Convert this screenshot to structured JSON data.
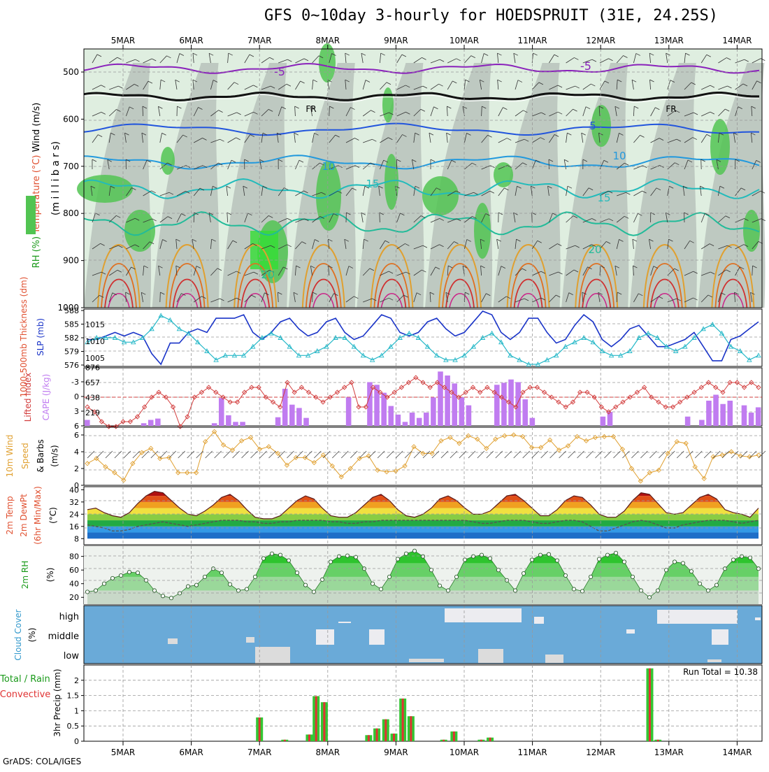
{
  "title": "GFS 0~10day 3-hourly for HOEDSPRUIT (31E, 24.25S)",
  "credit": "GrADS: COLA/IGES",
  "colors": {
    "rh_green": "#52c452",
    "rh_light": "#dfeee0",
    "rh_gray": "#b9c2bb",
    "slp_line": "#1a34c8",
    "thickness_line": "#25b8c8",
    "cape_bar": "#c07cf0",
    "lifted_line": "#d23c3c",
    "wind_line": "#e0a030",
    "cloud_bg": "#6aaad8",
    "cloud_fill": "#ececf0",
    "precip_total": "#33c633",
    "precip_conv": "#e03333"
  },
  "chart_data": [
    {
      "type": "area",
      "panel": "upper_air_cross_section",
      "days": [
        "5MAR",
        "6MAR",
        "7MAR",
        "8MAR",
        "9MAR",
        "10MAR",
        "11MAR",
        "12MAR",
        "13MAR",
        "14MAR"
      ],
      "ylabel": "(m i l l i b a r s)",
      "yticks": [
        "500",
        "600",
        "700",
        "800",
        "900",
        "1000"
      ],
      "ylim": [
        1000,
        450
      ],
      "legend": [
        "Wind (m/s)",
        "Temperature (°C)",
        "RH (%)"
      ],
      "isotherm_labels": [
        "-5",
        "-5",
        "FR",
        "FR",
        "5",
        "10",
        "10",
        "15",
        "15",
        "20",
        "20"
      ]
    },
    {
      "type": "line",
      "panel": "thickness_slp",
      "ylabel_left": "1000-500mb Thickness (dm)",
      "ylabel_right": "SLP (mb)",
      "yticks_left": [
        "576",
        "579",
        "582",
        "585",
        "588"
      ],
      "yticks_right": [
        "1005",
        "1010",
        "1015"
      ],
      "series": [
        {
          "name": "SLP",
          "values": [
            1010,
            1010,
            1011,
            1012,
            1011,
            1012,
            1011,
            1006,
            1003,
            1009,
            1009,
            1012,
            1013,
            1012,
            1016,
            1016,
            1016,
            1017,
            1012,
            1010,
            1012,
            1015,
            1016,
            1013,
            1011,
            1012,
            1015,
            1016,
            1012,
            1010,
            1011,
            1014,
            1017,
            1016,
            1012,
            1011,
            1012,
            1015,
            1016,
            1013,
            1011,
            1012,
            1015,
            1018,
            1017,
            1012,
            1010,
            1012,
            1016,
            1016,
            1012,
            1009,
            1010,
            1014,
            1017,
            1015,
            1010,
            1008,
            1010,
            1013,
            1014,
            1011,
            1008,
            1008,
            1009,
            1010,
            1012,
            1008,
            1004,
            1004,
            1010,
            1011,
            1013,
            1015
          ]
        },
        {
          "name": "Thickness",
          "values": [
            581,
            582,
            582,
            582,
            581,
            581,
            582,
            584,
            587,
            586,
            584,
            583,
            581,
            579,
            577,
            578,
            578,
            578,
            580,
            582,
            583,
            582,
            580,
            578,
            578,
            579,
            580,
            582,
            582,
            580,
            578,
            577,
            578,
            580,
            582,
            583,
            582,
            580,
            578,
            577,
            577,
            578,
            580,
            582,
            583,
            581,
            578,
            577,
            576,
            576,
            577,
            578,
            580,
            581,
            582,
            581,
            579,
            578,
            578,
            579,
            582,
            583,
            582,
            580,
            579,
            580,
            582,
            584,
            585,
            583,
            580,
            579,
            577,
            578
          ]
        }
      ]
    },
    {
      "type": "bar",
      "panel": "cape_lifted_index",
      "ylabel_left": "Lifted Index",
      "ylabel_right": "CAPE (J/kg)",
      "yticks_left": [
        "-3",
        "0",
        "3",
        "6"
      ],
      "yticks_right": [
        "219",
        "438",
        "657",
        "876"
      ],
      "series": [
        {
          "name": "CAPE",
          "values": [
            90,
            0,
            0,
            0,
            0,
            0,
            0,
            0,
            40,
            90,
            110,
            0,
            0,
            0,
            0,
            0,
            0,
            0,
            40,
            420,
            160,
            60,
            60,
            0,
            0,
            0,
            0,
            130,
            560,
            320,
            270,
            120,
            0,
            0,
            0,
            0,
            0,
            430,
            0,
            0,
            660,
            620,
            500,
            300,
            170,
            60,
            200,
            120,
            200,
            430,
            820,
            760,
            640,
            430,
            310,
            0,
            0,
            0,
            620,
            650,
            700,
            660,
            400,
            120,
            0,
            0,
            0,
            0,
            0,
            0,
            0,
            0,
            0,
            140,
            210,
            0,
            0,
            0,
            0,
            0,
            0,
            0,
            0,
            0,
            0,
            140,
            0,
            90,
            380,
            470,
            330,
            380,
            0,
            310,
            200,
            280
          ]
        },
        {
          "name": "Lifted Index",
          "values": [
            2,
            3,
            5,
            6,
            6,
            5,
            5,
            4,
            2,
            0,
            -1,
            0,
            2,
            6,
            4,
            0,
            -1,
            -2,
            -1,
            0,
            1,
            1,
            -1,
            -2,
            -2,
            0,
            1,
            2,
            -3,
            -1,
            -2,
            -1,
            0,
            1,
            0,
            -1,
            -2,
            -3,
            2,
            2,
            -2,
            -1,
            0,
            -1,
            -2,
            -3,
            -4,
            -3,
            -2,
            -3,
            -2,
            -1,
            0,
            -1,
            -2,
            -1,
            -2,
            -1,
            0,
            1,
            2,
            -1,
            -2,
            -2,
            -1,
            0,
            1,
            2,
            1,
            -1,
            -1,
            0,
            2,
            3,
            2,
            1,
            0,
            -1,
            -2,
            0,
            1,
            2,
            2,
            1,
            0,
            -1,
            -2,
            -3,
            -2,
            -1,
            -3,
            -3,
            -2,
            -3,
            -2
          ]
        }
      ]
    },
    {
      "type": "line",
      "panel": "wind_10m",
      "ylabel": "10m Wind Speed & Barbs (m/s)",
      "yticks": [
        "0",
        "2",
        "4",
        "6"
      ],
      "series": [
        {
          "name": "Wind Speed",
          "values": [
            2.6,
            3.2,
            2.2,
            1.5,
            0.6,
            2.6,
            3.9,
            4.4,
            3.2,
            3.3,
            1.5,
            1.5,
            1.5,
            5.2,
            6.4,
            4.8,
            4.2,
            5.3,
            5.7,
            4.3,
            4.6,
            3.8,
            2.4,
            3.3,
            3.3,
            2.7,
            3.6,
            2.3,
            1.0,
            2.0,
            3.2,
            3.5,
            1.8,
            1.6,
            1.7,
            2.3,
            4.6,
            3.8,
            3.8,
            5.3,
            5.7,
            5.0,
            5.9,
            5.5,
            4.4,
            5.5,
            5.9,
            6.0,
            5.8,
            4.5,
            4.5,
            5.4,
            4.2,
            4.7,
            5.8,
            5.3,
            5.7,
            5.8,
            5.8,
            4.3,
            2.0,
            0.5,
            1.5,
            1.8,
            3.8,
            5.2,
            5.0,
            2.2,
            0.8,
            3.4,
            3.6,
            4.0,
            3.5,
            3.4,
            3.6
          ]
        }
      ]
    },
    {
      "type": "area",
      "panel": "temp_2m",
      "ylabel": "2m Temp 2m DewPt (6hr Min/Max) (°C)",
      "yticks": [
        "8",
        "16",
        "24",
        "32",
        "40"
      ],
      "series": [
        {
          "name": "2m Temp",
          "values": [
            27,
            28,
            25,
            23,
            22,
            25,
            31,
            36,
            39,
            38,
            33,
            28,
            24,
            23,
            26,
            30,
            35,
            37,
            33,
            27,
            22,
            21,
            21,
            23,
            28,
            33,
            36,
            34,
            28,
            23,
            22,
            22,
            25,
            30,
            35,
            37,
            33,
            27,
            23,
            22,
            24,
            28,
            34,
            36,
            33,
            28,
            24,
            24,
            26,
            31,
            36,
            37,
            33,
            28,
            23,
            23,
            27,
            33,
            36,
            35,
            30,
            24,
            22,
            22,
            26,
            33,
            38,
            37,
            31,
            25,
            24,
            25,
            30,
            35,
            37,
            34,
            27,
            25,
            24,
            22,
            28
          ]
        },
        {
          "name": "2m DewPt",
          "values": [
            17,
            16,
            15,
            13,
            13,
            14,
            16,
            17,
            18,
            19,
            18,
            17,
            16,
            17,
            18,
            19,
            20,
            20,
            20,
            19,
            19,
            18,
            18,
            19,
            19,
            20,
            20,
            20,
            20,
            19,
            19,
            18,
            18,
            19,
            19,
            20,
            20,
            20,
            20,
            20,
            20,
            20,
            20,
            20,
            20,
            20,
            19,
            18,
            18,
            19,
            20,
            20,
            20,
            19,
            18,
            18,
            19,
            20,
            20,
            19,
            16,
            13,
            13,
            15,
            17,
            19,
            20,
            19,
            17,
            15,
            15,
            17,
            18,
            19,
            20,
            20,
            20,
            19,
            18,
            19,
            20
          ]
        }
      ]
    },
    {
      "type": "area",
      "panel": "rh_2m",
      "ylabel": "2m RH (%)",
      "yticks": [
        "20",
        "40",
        "60",
        "80"
      ],
      "series": [
        {
          "name": "2m RH",
          "values": [
            28,
            30,
            40,
            48,
            52,
            57,
            56,
            45,
            30,
            22,
            19,
            26,
            36,
            38,
            50,
            62,
            56,
            39,
            30,
            32,
            50,
            77,
            84,
            82,
            74,
            56,
            38,
            28,
            46,
            72,
            80,
            81,
            79,
            62,
            40,
            32,
            50,
            76,
            84,
            88,
            80,
            60,
            37,
            30,
            50,
            75,
            80,
            82,
            77,
            60,
            45,
            30,
            55,
            75,
            82,
            83,
            74,
            52,
            32,
            29,
            50,
            76,
            82,
            85,
            72,
            50,
            30,
            20,
            30,
            60,
            72,
            70,
            58,
            40,
            30,
            38,
            62,
            75,
            80,
            78,
            62
          ]
        }
      ]
    },
    {
      "type": "area",
      "panel": "cloud_cover",
      "ylabel": "Cloud Cover (%)",
      "ytick_labels": [
        "high",
        "middle",
        "low"
      ]
    },
    {
      "type": "bar",
      "panel": "precip_3hr",
      "ylabel": "3hr Precip (mm)",
      "ylabel_left": "Total / Rain Convective",
      "yticks": [
        "0",
        "0.5",
        "1",
        "1.5",
        "2"
      ],
      "run_total_label": "Run Total = 10.38",
      "series": [
        {
          "name": "Total",
          "bars": [
            [
              7.0,
              0.78
            ],
            [
              7.37,
              0.05
            ],
            [
              7.73,
              0.22
            ],
            [
              7.83,
              1.48
            ],
            [
              7.95,
              1.28
            ],
            [
              8.6,
              0.2
            ],
            [
              8.72,
              0.42
            ],
            [
              8.85,
              0.72
            ],
            [
              8.97,
              0.25
            ],
            [
              9.1,
              1.4
            ],
            [
              9.22,
              0.82
            ],
            [
              9.7,
              0.05
            ],
            [
              9.85,
              0.32
            ],
            [
              10.25,
              0.05
            ],
            [
              10.38,
              0.12
            ],
            [
              12.72,
              2.39
            ],
            [
              12.84,
              0.05
            ]
          ]
        }
      ]
    }
  ]
}
